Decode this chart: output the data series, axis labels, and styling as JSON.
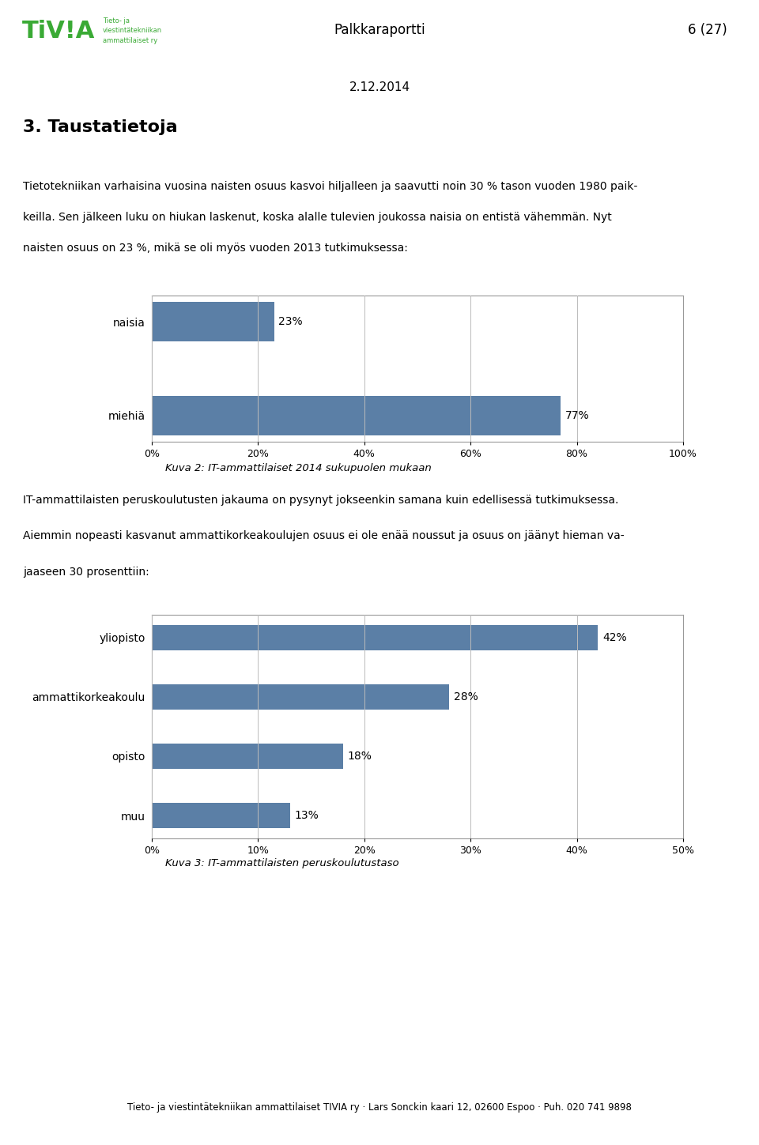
{
  "page_title": "Palkkaraportti",
  "page_number": "6 (27)",
  "date": "2.12.2014",
  "section_title": "3. Taustatietoja",
  "intro_line1": "Tietotekniikan varhaisina vuosina naisten osuus kasvoi hiljalleen ja saavutti noin 30 % tason vuoden 1980 paik-",
  "intro_line2": "keilla. Sen jälkeen luku on hiukan laskenut, koska alalle tulevien joukossa naisia on entistä vähemmän. Nyt",
  "intro_line3": "naisten osuus on 23 %, mikä se oli myös vuoden 2013 tutkimuksessa:",
  "chart1_categories": [
    "naisia",
    "miehiä"
  ],
  "chart1_values": [
    23,
    77
  ],
  "chart1_xlim": [
    0,
    100
  ],
  "chart1_xticks": [
    0,
    20,
    40,
    60,
    80,
    100
  ],
  "chart1_xtick_labels": [
    "0%",
    "20%",
    "40%",
    "60%",
    "80%",
    "100%"
  ],
  "chart1_caption": "Kuva 2: IT-ammattilaiset 2014 sukupuolen mukaan",
  "inter_line1": "IT-ammattilaisten peruskoulutusten jakauma on pysynyt jokseenkin samana kuin edellisessä tutkimuksessa.",
  "inter_line2": "Aiemmin nopeasti kasvanut ammattikorkeakoulujen osuus ei ole enää noussut ja osuus on jäänyt hieman va-",
  "inter_line3": "jaaseen 30 prosenttiin:",
  "chart2_categories": [
    "yliopisto",
    "ammattikorkeakoulu",
    "opisto",
    "muu"
  ],
  "chart2_values": [
    42,
    28,
    18,
    13
  ],
  "chart2_xlim": [
    0,
    50
  ],
  "chart2_xticks": [
    0,
    10,
    20,
    30,
    40,
    50
  ],
  "chart2_xtick_labels": [
    "0%",
    "10%",
    "20%",
    "30%",
    "40%",
    "50%"
  ],
  "chart2_caption": "Kuva 3: IT-ammattilaisten peruskoulutustaso",
  "bar_color": "#5b7fa6",
  "footer_text": "Tieto- ja viestintätekniikan ammattilaiset TIVIA ry · Lars Sonckin kaari 12, 02600 Espoo · Puh. 020 741 9898",
  "background_color": "#ffffff",
  "text_color": "#000000",
  "logo_color": "#3aaa35"
}
